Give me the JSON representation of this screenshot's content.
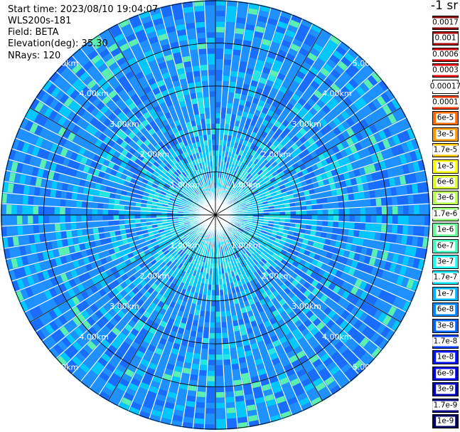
{
  "header": {
    "start_time": "Start time: 2023/08/10 19:04:07",
    "instrument": "WLS200s-181",
    "field": "Field: BETA",
    "elevation": "Elevation(deg): 35.30",
    "nrays": "NRays: 120"
  },
  "colorbar": {
    "title": "-1 sr",
    "levels": [
      {
        "label": "0.0017",
        "color": "#8b0000"
      },
      {
        "label": "0.001",
        "color": "#b00000"
      },
      {
        "label": "0.0006",
        "color": "#d10000"
      },
      {
        "label": "0.0003",
        "color": "#f00000"
      },
      {
        "label": "0.00017",
        "color": "#ffffff"
      },
      {
        "label": "0.0001",
        "color": "#ff3a00"
      },
      {
        "label": "6e-5",
        "color": "#ff6a00"
      },
      {
        "label": "3e-5",
        "color": "#ff9a00"
      },
      {
        "label": "1.7e-5",
        "color": "#ffc400"
      },
      {
        "label": "1e-5",
        "color": "#ffff00"
      },
      {
        "label": "6e-6",
        "color": "#d8ff28"
      },
      {
        "label": "3e-6",
        "color": "#b4ff4c"
      },
      {
        "label": "1.7e-6",
        "color": "#90ff70"
      },
      {
        "label": "1e-6",
        "color": "#66ff96"
      },
      {
        "label": "6e-7",
        "color": "#3effbc"
      },
      {
        "label": "3e-7",
        "color": "#1afff0"
      },
      {
        "label": "1.7e-7",
        "color": "#00e8ff"
      },
      {
        "label": "1e-7",
        "color": "#00b4ff"
      },
      {
        "label": "6e-8",
        "color": "#0088ff"
      },
      {
        "label": "3e-8",
        "color": "#0064ff"
      },
      {
        "label": "1.7e-8",
        "color": "#0040ff"
      },
      {
        "label": "1e-8",
        "color": "#0010ff"
      },
      {
        "label": "6e-9",
        "color": "#0000e6"
      },
      {
        "label": "3e-9",
        "color": "#0000b8"
      },
      {
        "label": "1.7e-9",
        "color": "#00008a"
      },
      {
        "label": "1e-9",
        "color": "#000060"
      }
    ]
  },
  "chart_data": {
    "type": "heatmap",
    "subtype": "polar-ppi",
    "range_rings_km": [
      1,
      2,
      3,
      4,
      5
    ],
    "range_ring_labels": [
      "1.00km",
      "2.00km",
      "3.00km",
      "4.00km",
      "5.00km"
    ],
    "max_range_km": 5.0,
    "azimuth_spokes_deg": [
      0,
      30,
      60,
      90,
      120,
      150,
      180,
      210,
      240,
      270,
      300,
      330
    ],
    "nrays": 120,
    "dominant_colors": [
      "#1e90ff",
      "#1a6cff",
      "#00c8ff",
      "#26e6e0",
      "#5cf0b0"
    ],
    "value_range_approx": [
      "1e-8",
      "3e-7"
    ]
  }
}
